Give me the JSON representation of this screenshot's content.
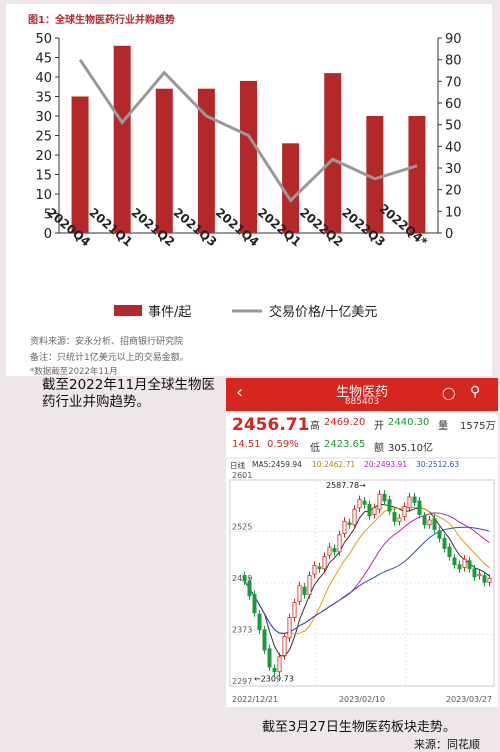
{
  "figure1": {
    "title": "图1：全球生物医药行业并购趋势",
    "source": "资料来源：安永分析、招商银行研究院",
    "note": "备注：只统计1亿美元以上的交易金额。",
    "footnote": "*数据截至2022年11月"
  },
  "chart_data": {
    "type": "bar",
    "categories": [
      "2020Q4",
      "2021Q1",
      "2021Q2",
      "2021Q3",
      "2021Q4",
      "2022Q1",
      "2022Q2",
      "2022Q3",
      "2022Q4*"
    ],
    "series": [
      {
        "name": "事件/起",
        "type": "bar",
        "axis": "left",
        "color": "#b5282a",
        "values": [
          35,
          48,
          37,
          37,
          39,
          23,
          41,
          30,
          30
        ]
      },
      {
        "name": "交易价格/十亿美元",
        "type": "line",
        "axis": "right",
        "color": "#999999",
        "values": [
          80,
          51,
          74,
          54,
          45,
          15,
          34,
          25,
          31
        ]
      }
    ],
    "y_left": {
      "min": 0,
      "max": 50,
      "ticks": [
        0,
        5,
        10,
        15,
        20,
        25,
        30,
        35,
        40,
        45,
        50
      ]
    },
    "y_right": {
      "min": 0,
      "max": 90,
      "ticks": [
        0,
        10,
        20,
        30,
        40,
        50,
        60,
        70,
        80,
        90
      ]
    },
    "legend_position": "bottom",
    "grid": false
  },
  "caption1": "截至2022年11月全球生物医药行业并购趋势。",
  "stock_app": {
    "back_icon": "back-arrow-icon",
    "title": "生物医药",
    "code": "885403",
    "icons": [
      "robot-icon",
      "search-icon"
    ],
    "price": "2456.71",
    "change": "14.51",
    "change_pct": "0.59%",
    "high_label": "高",
    "high": "2469.20",
    "open_label": "开",
    "open": "2440.30",
    "volume_label": "量",
    "volume": "1575万",
    "low_label": "低",
    "low": "2423.65",
    "amount_label": "额",
    "amount": "305.10亿",
    "period_label": "日线",
    "ma5_label": "MA5:2459.94",
    "ma10_label": "10:2462.71",
    "ma20_label": "20:2493.91",
    "ma30_label": "30:2512.63",
    "colors": {
      "up": "#d7261e",
      "down": "#1a9a3a",
      "ma5": "#333333",
      "ma10": "#d9a300",
      "ma20": "#c020c0",
      "ma30": "#3050c0"
    },
    "kline_data": {
      "type": "candlestick",
      "y_ticks": [
        "2601",
        "2525",
        "2449",
        "2373",
        "2297"
      ],
      "y_min": 2297,
      "y_max": 2601,
      "x_labels": [
        "2022/12/21",
        "2023/02/10",
        "2023/03/27"
      ],
      "max_annotation": "2587.78→",
      "max_value": 2587.78,
      "min_annotation": "←2309.73",
      "min_value": 2309.73,
      "closes": [
        2452,
        2430,
        2405,
        2380,
        2350,
        2325,
        2318,
        2340,
        2370,
        2398,
        2420,
        2445,
        2432,
        2460,
        2475,
        2470,
        2488,
        2502,
        2495,
        2520,
        2540,
        2535,
        2558,
        2572,
        2565,
        2548,
        2560,
        2580,
        2570,
        2555,
        2540,
        2545,
        2562,
        2576,
        2568,
        2550,
        2535,
        2542,
        2528,
        2515,
        2500,
        2488,
        2476,
        2470,
        2484,
        2470,
        2458,
        2462,
        2450,
        2456
      ]
    }
  },
  "caption2": "截至3月27日生物医药板块走势。",
  "source2": "来源：同花顺"
}
